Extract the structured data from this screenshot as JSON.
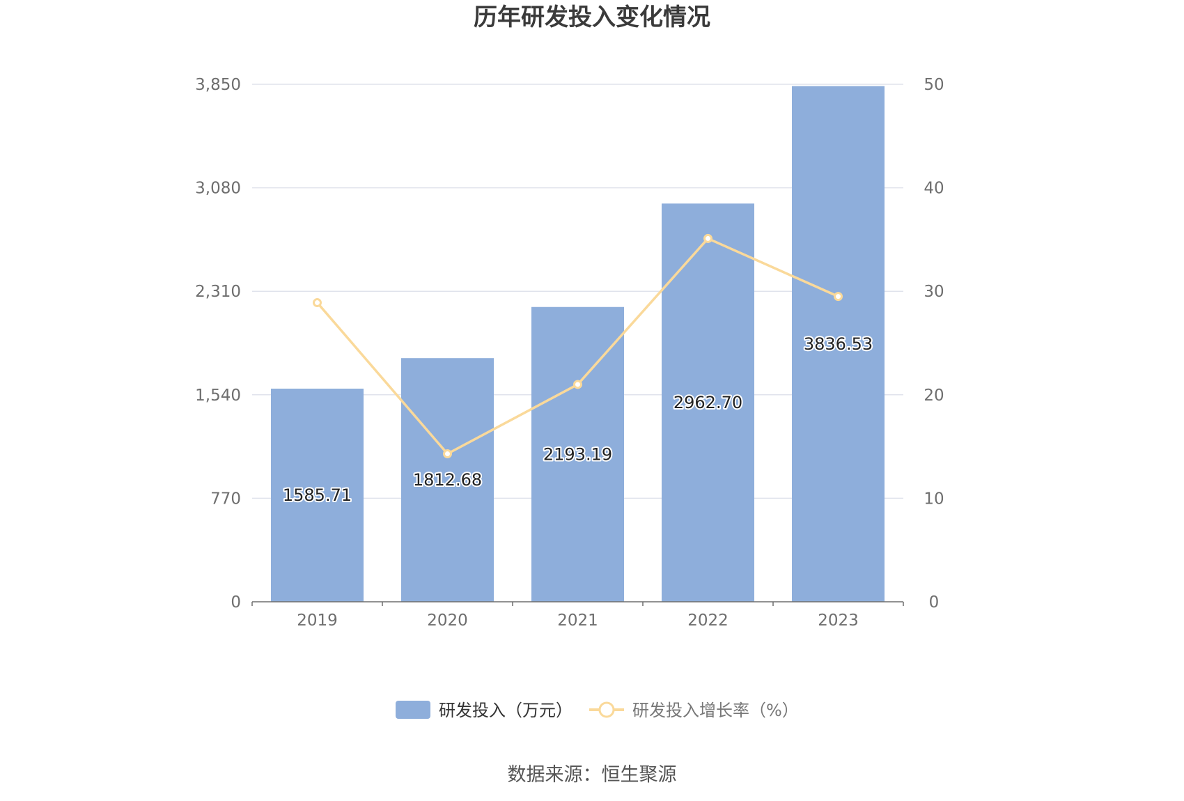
{
  "chart_data": {
    "type": "bar",
    "title": "历年研发投入变化情况",
    "categories": [
      "2019",
      "2020",
      "2021",
      "2022",
      "2023"
    ],
    "series": [
      {
        "name": "研发投入（万元）",
        "type": "bar",
        "axis": "left",
        "color": "#8eaedb",
        "values": [
          1585.71,
          1812.68,
          2193.19,
          2962.7,
          3836.53
        ],
        "labels": [
          "1585.71",
          "1812.68",
          "2193.19",
          "2962.70",
          "3836.53"
        ]
      },
      {
        "name": "研发投入增长率（%）",
        "type": "line",
        "axis": "right",
        "color": "#fad99a",
        "values": [
          28.9,
          14.3,
          21.0,
          35.1,
          29.5
        ]
      }
    ],
    "y_left": {
      "min": 0,
      "max": 3850,
      "ticks": [
        0,
        770,
        1540,
        2310,
        3080,
        3850
      ],
      "tick_labels": [
        "0",
        "770",
        "1,540",
        "2,310",
        "3,080",
        "3,850"
      ]
    },
    "y_right": {
      "min": 0,
      "max": 50,
      "ticks": [
        0,
        10,
        20,
        30,
        40,
        50
      ],
      "tick_labels": [
        "0",
        "10",
        "20",
        "30",
        "40",
        "50"
      ]
    },
    "grid": true,
    "legend_position": "bottom-center"
  },
  "source": "数据来源：恒生聚源"
}
